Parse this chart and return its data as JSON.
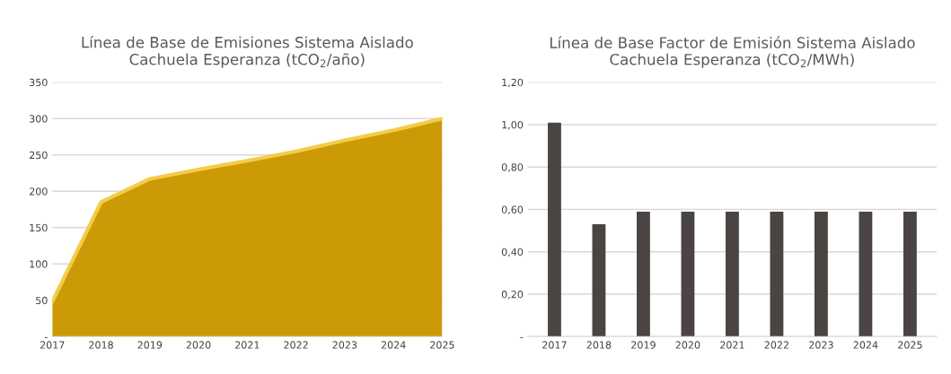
{
  "chart_data": [
    {
      "type": "area",
      "title": "Línea de Base de Emisiones Sistema Aislado\nCachuela Esperanza (tCO$_{2}$/año)",
      "categories": [
        "2017",
        "2018",
        "2019",
        "2020",
        "2021",
        "2022",
        "2023",
        "2024",
        "2025"
      ],
      "series": [
        {
          "color": "#cc9a06",
          "values": [
            48,
            185,
            217,
            230,
            242,
            255,
            270,
            284,
            300
          ]
        }
      ],
      "ylim": [
        0,
        350
      ],
      "yticks": [
        {
          "value": 0,
          "label": "-"
        },
        50,
        100,
        150,
        200,
        250,
        300,
        350
      ],
      "grid": "y",
      "legend": false
    },
    {
      "type": "bar",
      "title": "Línea de Base Factor de Emisión Sistema Aislado\nCachuela Esperanza (tCO$_{2}$/MWh)",
      "categories": [
        "2017",
        "2018",
        "2019",
        "2020",
        "2021",
        "2022",
        "2023",
        "2024",
        "2025"
      ],
      "series": [
        {
          "color": "#4a4543",
          "values": [
            1.01,
            0.53,
            0.59,
            0.59,
            0.59,
            0.59,
            0.59,
            0.59,
            0.59
          ]
        }
      ],
      "ylim": [
        0,
        1.2
      ],
      "yticks": [
        {
          "value": 0,
          "label": "-"
        },
        {
          "value": 0.2,
          "label": "0,20"
        },
        {
          "value": 0.4,
          "label": "0,40"
        },
        {
          "value": 0.6,
          "label": "0,60"
        },
        {
          "value": 0.8,
          "label": "0,80"
        },
        {
          "value": 1.0,
          "label": "1,00"
        },
        {
          "value": 1.2,
          "label": "1,20"
        }
      ],
      "grid": "y",
      "legend": false
    }
  ]
}
